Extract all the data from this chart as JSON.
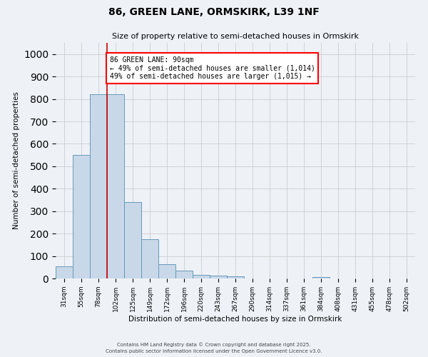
{
  "title": "86, GREEN LANE, ORMSKIRK, L39 1NF",
  "subtitle": "Size of property relative to semi-detached houses in Ormskirk",
  "xlabel": "Distribution of semi-detached houses by size in Ormskirk",
  "ylabel": "Number of semi-detached properties",
  "bar_labels": [
    "31sqm",
    "55sqm",
    "78sqm",
    "102sqm",
    "125sqm",
    "149sqm",
    "172sqm",
    "196sqm",
    "220sqm",
    "243sqm",
    "267sqm",
    "290sqm",
    "314sqm",
    "337sqm",
    "361sqm",
    "384sqm",
    "408sqm",
    "431sqm",
    "455sqm",
    "478sqm",
    "502sqm"
  ],
  "bar_values": [
    55,
    550,
    820,
    820,
    340,
    175,
    65,
    35,
    15,
    12,
    8,
    0,
    0,
    0,
    0,
    5,
    0,
    0,
    0,
    0,
    0
  ],
  "bar_color": "#c8d8e8",
  "bar_edge_color": "#6699bb",
  "annotation_text_line1": "86 GREEN LANE: 90sqm",
  "annotation_text_line2": "← 49% of semi-detached houses are smaller (1,014)",
  "annotation_text_line3": "49% of semi-detached houses are larger (1,015) →",
  "vline_color": "#cc0000",
  "ylim": [
    0,
    1050
  ],
  "background_color": "#eef2f7",
  "grid_color": "#cccccc",
  "footer_line1": "Contains HM Land Registry data © Crown copyright and database right 2025.",
  "footer_line2": "Contains public sector information licensed under the Open Government Licence v3.0."
}
